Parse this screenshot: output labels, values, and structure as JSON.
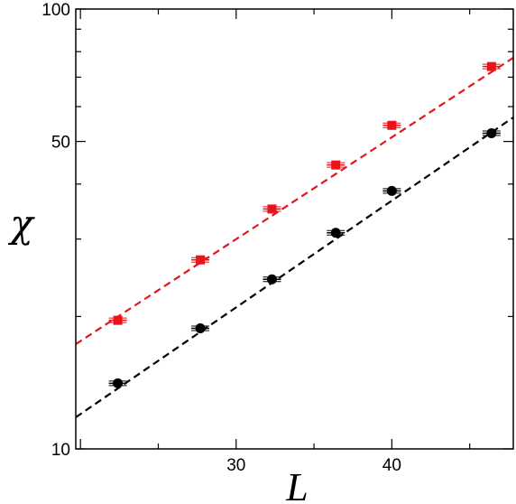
{
  "chart_data": {
    "type": "scatter",
    "title": "",
    "xlabel": "L",
    "ylabel": "χ",
    "xlim": [
      19.7,
      47.8
    ],
    "ylim": [
      10,
      100
    ],
    "yscale": "log",
    "grid": false,
    "legend": "none",
    "xticks": [
      {
        "value": 30,
        "label": "30"
      },
      {
        "value": 40,
        "label": "40"
      }
    ],
    "yticks": [
      {
        "value": 10,
        "label": "10"
      },
      {
        "value": 50,
        "label": "50"
      },
      {
        "value": 100,
        "label": "100"
      }
    ],
    "series": [
      {
        "color": "#e8141a",
        "marker": "square",
        "x": [
          22.4,
          27.7,
          32.3,
          36.4,
          40.0,
          46.4
        ],
        "y": [
          19.6,
          26.9,
          35.1,
          44.2,
          54.4,
          74.0
        ],
        "fit": {
          "style": "dashed",
          "x": [
            19.7,
            47.8
          ],
          "y": [
            17.3,
            77.5
          ]
        }
      },
      {
        "color": "#000000",
        "marker": "circle",
        "x": [
          22.4,
          27.7,
          32.3,
          36.4,
          40.0,
          46.4
        ],
        "y": [
          14.1,
          18.8,
          24.3,
          31.0,
          38.6,
          52.2
        ],
        "fit": {
          "style": "dashed",
          "x": [
            19.7,
            47.8
          ],
          "y": [
            11.8,
            56.7
          ]
        }
      }
    ]
  }
}
